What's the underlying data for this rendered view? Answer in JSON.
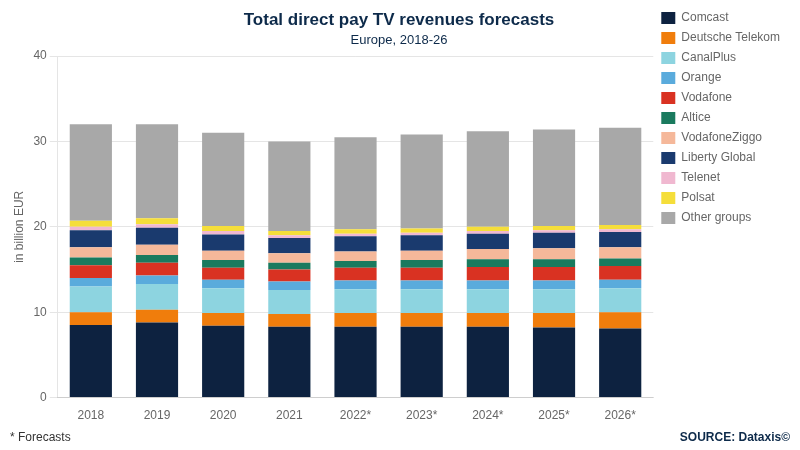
{
  "chart_data": {
    "type": "bar",
    "title": "Total direct pay TV revenues forecasts",
    "subtitle": "Europe, 2018-26",
    "ylabel": "in billion EUR",
    "annotations": [
      "* Forecasts",
      "SOURCE: Dataxis©"
    ],
    "categories": [
      "2018",
      "2019",
      "2020",
      "2021",
      "2022*",
      "2023*",
      "2024*",
      "2025*",
      "2026*"
    ],
    "series": [
      {
        "name": "Comcast",
        "color": "#0d2240",
        "values": [
          8.5,
          8.8,
          8.4,
          8.3,
          8.3,
          8.3,
          8.3,
          8.2,
          8.1
        ]
      },
      {
        "name": "Deutsche Telekom",
        "color": "#f07d0c",
        "values": [
          1.5,
          1.5,
          1.5,
          1.5,
          1.6,
          1.6,
          1.6,
          1.7,
          1.9
        ]
      },
      {
        "name": "CanalPlus",
        "color": "#8dd4e0",
        "values": [
          3.0,
          3.0,
          2.9,
          2.8,
          2.8,
          2.8,
          2.8,
          2.8,
          2.8
        ]
      },
      {
        "name": "Orange",
        "color": "#5aabdc",
        "values": [
          1.0,
          1.0,
          1.0,
          1.0,
          1.0,
          1.0,
          1.0,
          1.0,
          1.0
        ]
      },
      {
        "name": "Vodafone",
        "color": "#d93222",
        "values": [
          1.5,
          1.5,
          1.4,
          1.4,
          1.5,
          1.5,
          1.6,
          1.6,
          1.6
        ]
      },
      {
        "name": "Altice",
        "color": "#1a7a5e",
        "values": [
          0.9,
          0.9,
          0.9,
          0.8,
          0.8,
          0.9,
          0.9,
          0.9,
          0.9
        ]
      },
      {
        "name": "VodafoneZiggo",
        "color": "#f5b89a",
        "values": [
          1.2,
          1.2,
          1.1,
          1.1,
          1.1,
          1.1,
          1.2,
          1.3,
          1.3
        ]
      },
      {
        "name": "Liberty Global",
        "color": "#1a3a6e",
        "values": [
          2.0,
          2.0,
          1.9,
          1.8,
          1.8,
          1.8,
          1.8,
          1.8,
          1.8
        ]
      },
      {
        "name": "Telenet",
        "color": "#f0b8d0",
        "values": [
          0.4,
          0.4,
          0.4,
          0.3,
          0.3,
          0.3,
          0.3,
          0.3,
          0.3
        ]
      },
      {
        "name": "Polsat",
        "color": "#f5de3a",
        "values": [
          0.7,
          0.7,
          0.6,
          0.5,
          0.5,
          0.5,
          0.5,
          0.5,
          0.5
        ]
      },
      {
        "name": "Other groups",
        "color": "#a8a8a8",
        "values": [
          11.3,
          11.0,
          10.9,
          10.5,
          10.8,
          11.0,
          11.2,
          11.3,
          11.4
        ]
      }
    ],
    "ylim": [
      0,
      40
    ],
    "yticks": [
      0,
      10,
      20,
      30,
      40
    ],
    "stacked": true,
    "grid": true,
    "legend": "right"
  }
}
